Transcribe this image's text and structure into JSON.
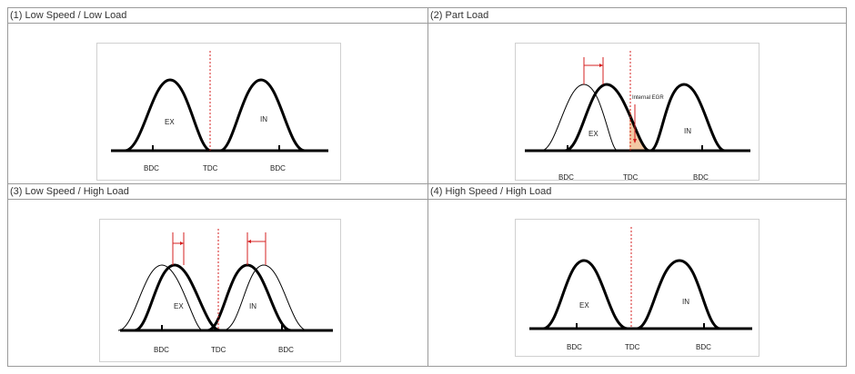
{
  "panels": [
    {
      "title": "(1) Low Speed / Low Load",
      "labels": {
        "ex": "EX",
        "in": "IN",
        "bdc_left": "BDC",
        "tdc": "TDC",
        "bdc_right": "BDC"
      }
    },
    {
      "title": "(2) Part Load",
      "labels": {
        "ex": "EX",
        "in": "IN",
        "bdc_left": "BDC",
        "tdc": "TDC",
        "bdc_right": "BDC"
      },
      "annotation": "Internal EGR"
    },
    {
      "title": "(3) Low Speed / High Load",
      "labels": {
        "ex": "EX",
        "in": "IN",
        "bdc_left": "BDC",
        "tdc": "TDC",
        "bdc_right": "BDC"
      }
    },
    {
      "title": "(4) High Speed / High Load",
      "labels": {
        "ex": "EX",
        "in": "IN",
        "bdc_left": "BDC",
        "tdc": "TDC",
        "bdc_right": "BDC"
      }
    }
  ],
  "colors": {
    "curve": "#000000",
    "tdc_line": "#d42020",
    "egr_fill": "#f3c9a4",
    "border": "#9a9a9a"
  }
}
